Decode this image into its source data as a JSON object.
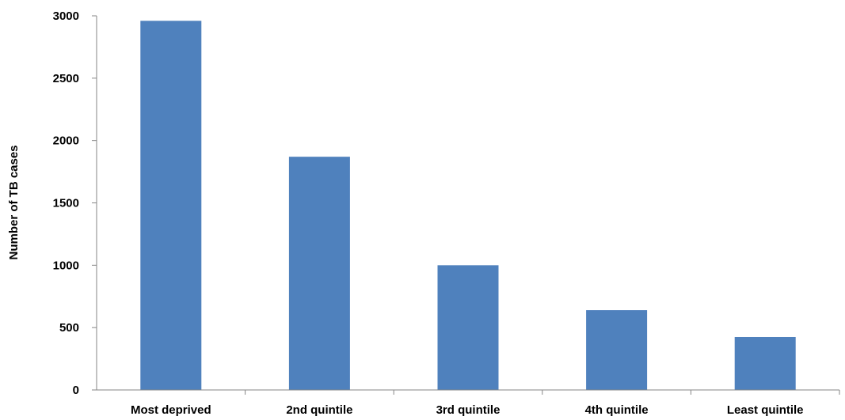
{
  "chart_data": {
    "type": "bar",
    "categories": [
      "Most deprived",
      "2nd quintile",
      "3rd quintile",
      "4th quintile",
      "Least quintile"
    ],
    "values": [
      2960,
      1870,
      1000,
      640,
      425
    ],
    "title": "",
    "xlabel": "",
    "ylabel": "Number of TB cases",
    "ylim": [
      0,
      3000
    ],
    "yticks": [
      "0",
      "500",
      "1000",
      "1500",
      "2000",
      "2500",
      "3000"
    ],
    "grid": false,
    "legend": "none",
    "bar_color": "#4F81BD"
  }
}
